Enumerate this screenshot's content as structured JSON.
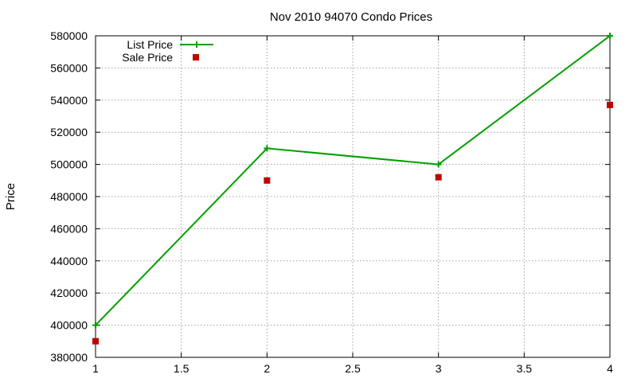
{
  "chart_data": {
    "type": "line",
    "title": "Nov 2010 94070 Condo Prices",
    "xlabel": "",
    "ylabel": "Price",
    "xlim": [
      1,
      4
    ],
    "ylim": [
      380000,
      580000
    ],
    "xticks": [
      1,
      1.5,
      2,
      2.5,
      3,
      3.5,
      4
    ],
    "xtick_labels": [
      "1",
      "1.5",
      "2",
      "2.5",
      "3",
      "3.5",
      "4"
    ],
    "yticks": [
      380000,
      400000,
      420000,
      440000,
      460000,
      480000,
      500000,
      520000,
      540000,
      560000,
      580000
    ],
    "ytick_labels": [
      "380000",
      "400000",
      "420000",
      "440000",
      "460000",
      "480000",
      "500000",
      "520000",
      "540000",
      "560000",
      "580000"
    ],
    "grid": true,
    "legend_position": "top-left",
    "series": [
      {
        "name": "List Price",
        "style": "linespoints",
        "color": "#00a000",
        "marker": "plus",
        "x": [
          1,
          2,
          3,
          4
        ],
        "y": [
          400000,
          510000,
          500000,
          580000
        ]
      },
      {
        "name": "Sale Price",
        "style": "points",
        "color": "#c00000",
        "marker": "square",
        "x": [
          1,
          2,
          3,
          4
        ],
        "y": [
          390000,
          490000,
          492000,
          537000
        ]
      }
    ]
  }
}
